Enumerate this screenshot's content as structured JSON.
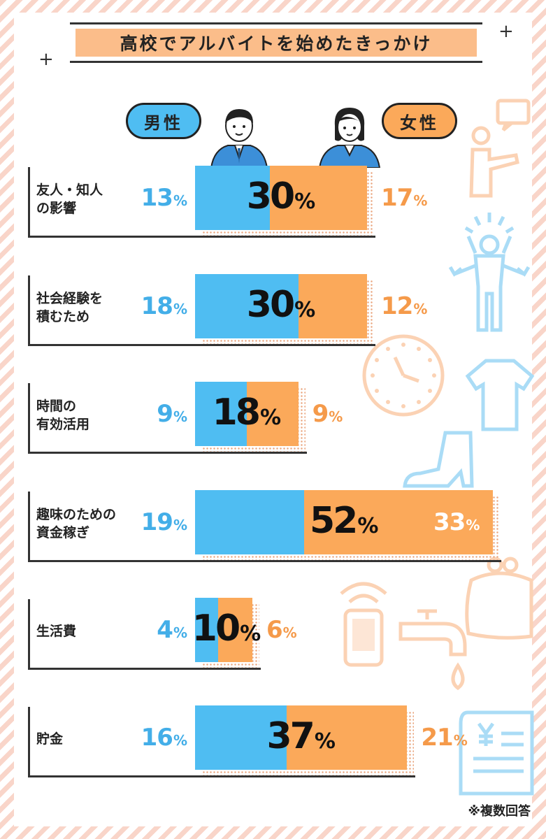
{
  "title": "高校でアルバイトを始めたきっかけ",
  "legend": {
    "male": "男性",
    "female": "女性"
  },
  "percent_unit": "%",
  "note": "※複数回答",
  "colors": {
    "male": "#4fbdf2",
    "female": "#fba95a",
    "male_text": "#43aee8",
    "female_text": "#f59a4a"
  },
  "chart_data": {
    "type": "bar",
    "stacked": true,
    "orientation": "horizontal",
    "title": "高校でアルバイトを始めたきっかけ",
    "unit": "%",
    "categories": [
      {
        "label_lines": [
          "友人・知人",
          "の影響"
        ],
        "male": 13,
        "female": 17,
        "total": 30
      },
      {
        "label_lines": [
          "社会経験を",
          "積むため"
        ],
        "male": 18,
        "female": 12,
        "total": 30
      },
      {
        "label_lines": [
          "時間の",
          "有効活用"
        ],
        "male": 9,
        "female": 9,
        "total": 18
      },
      {
        "label_lines": [
          "趣味のための",
          "資金稼ぎ"
        ],
        "male": 19,
        "female": 33,
        "total": 52
      },
      {
        "label_lines": [
          "生活費"
        ],
        "male": 4,
        "female": 6,
        "total": 10
      },
      {
        "label_lines": [
          "貯金"
        ],
        "male": 16,
        "female": 21,
        "total": 37
      }
    ],
    "series": [
      {
        "name": "男性",
        "key": "male"
      },
      {
        "name": "女性",
        "key": "female"
      }
    ],
    "note": "※複数回答"
  }
}
